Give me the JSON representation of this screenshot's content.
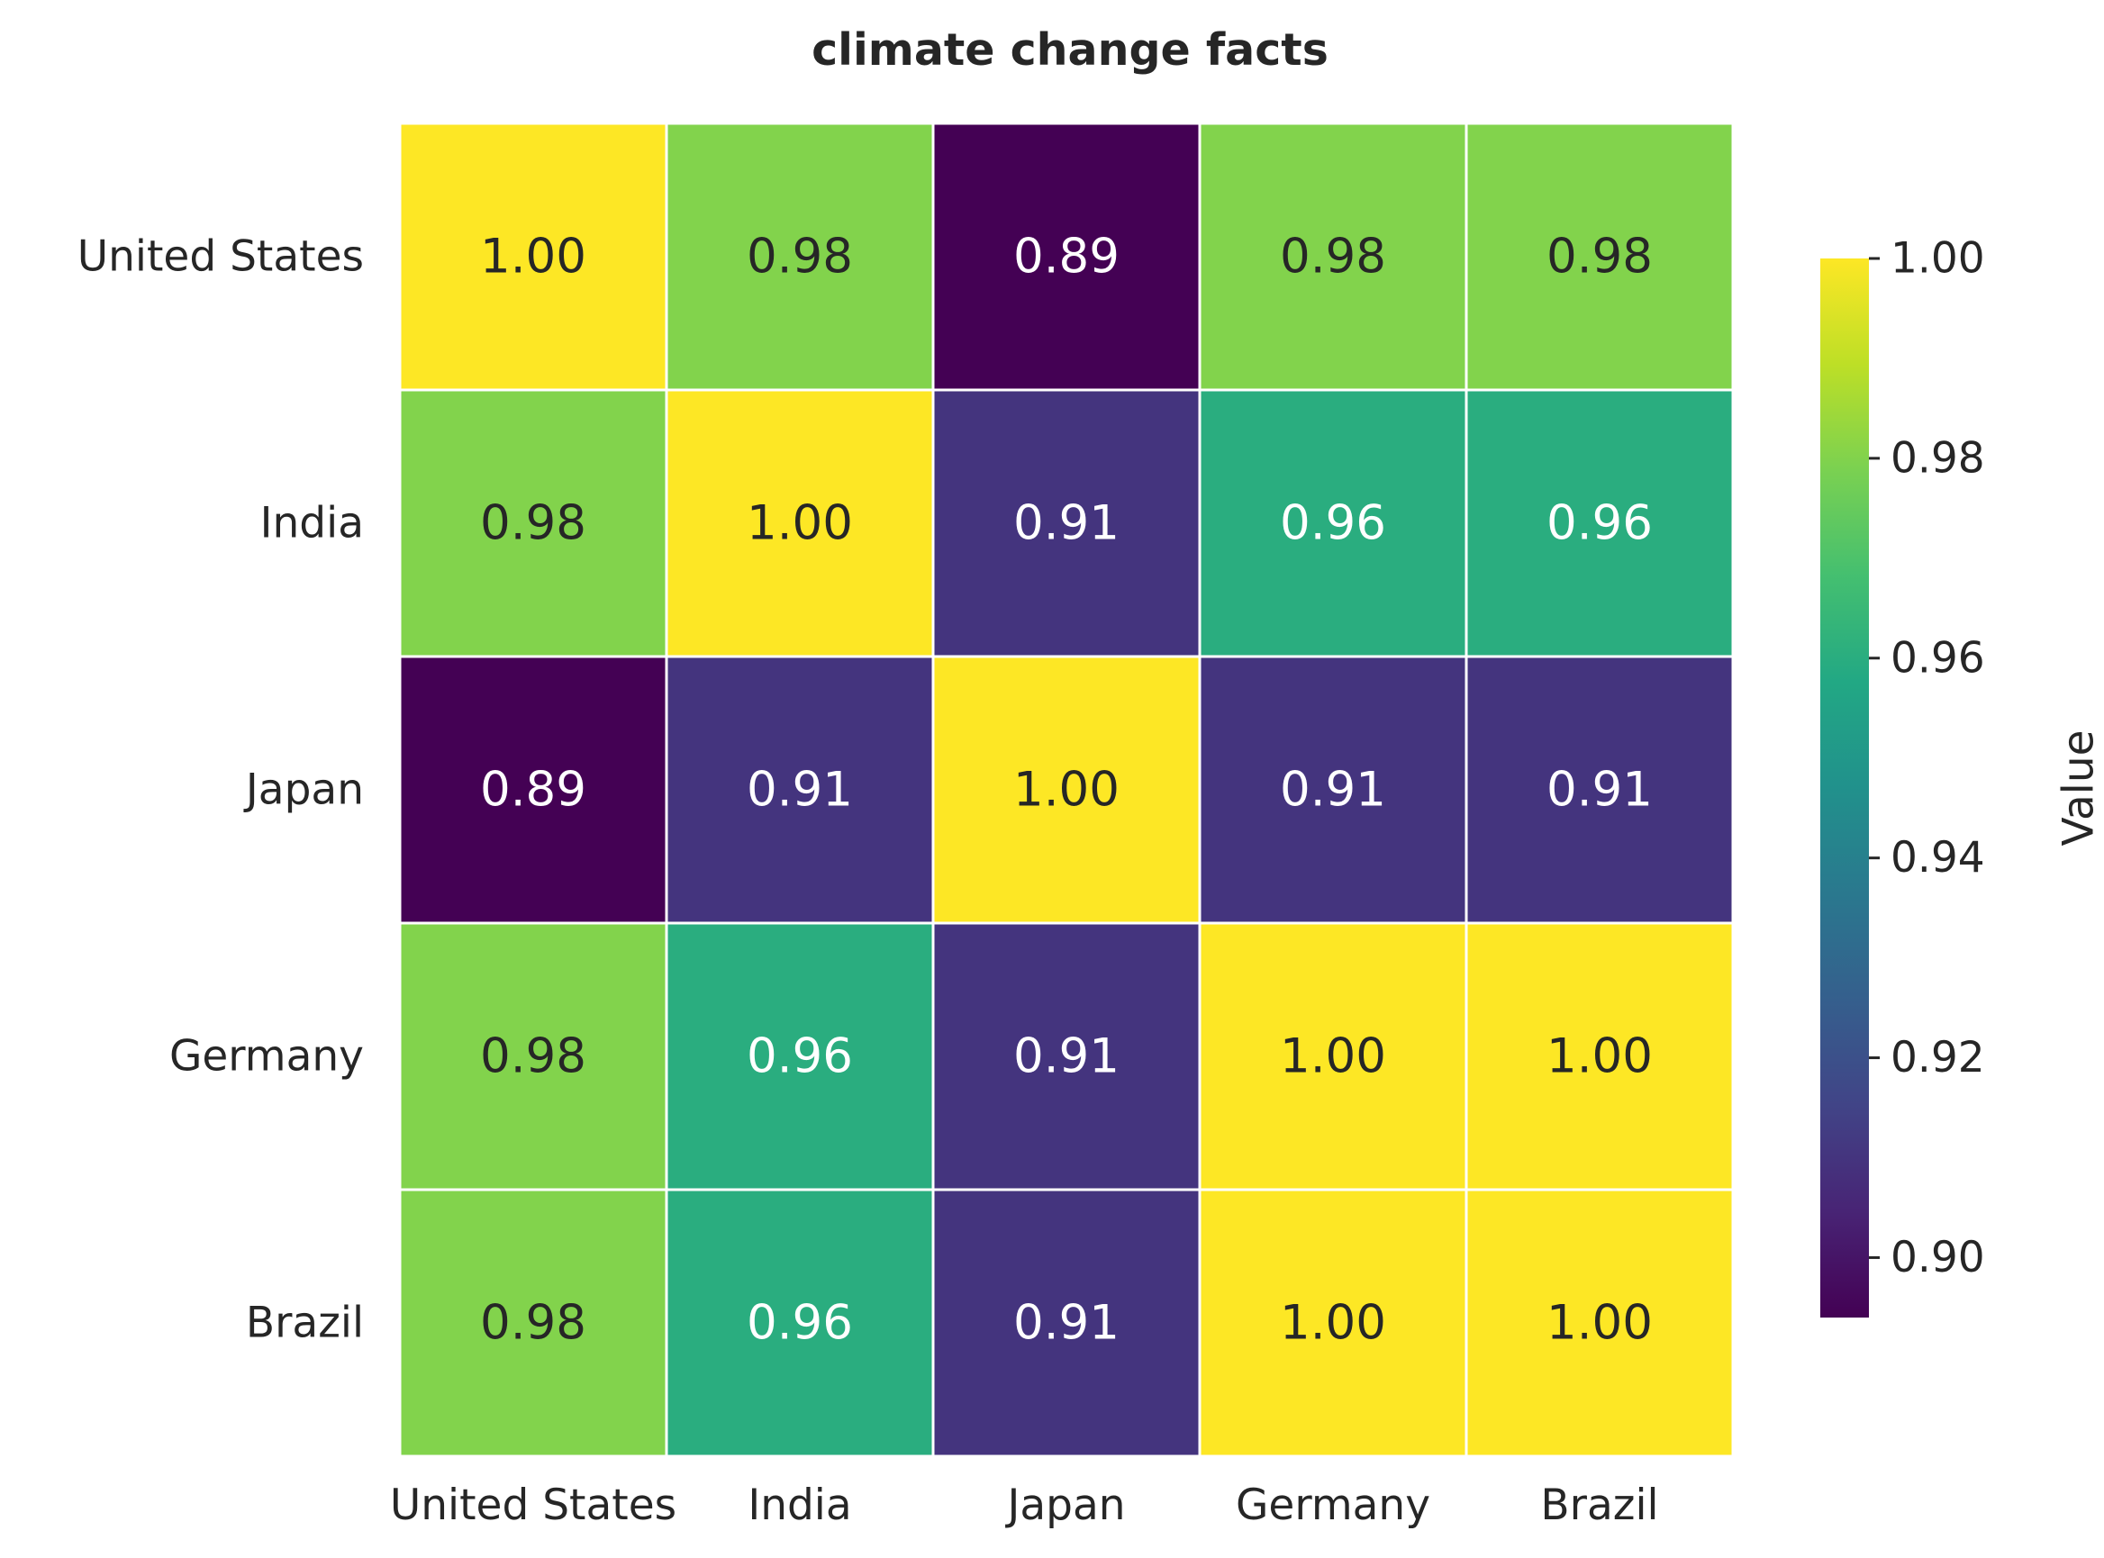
{
  "chart_data": {
    "type": "heatmap",
    "title": "climate change facts",
    "x_categories": [
      "United States",
      "India",
      "Japan",
      "Germany",
      "Brazil"
    ],
    "y_categories": [
      "United States",
      "India",
      "Japan",
      "Germany",
      "Brazil"
    ],
    "values": [
      [
        1.0,
        0.98,
        0.89,
        0.98,
        0.98
      ],
      [
        0.98,
        1.0,
        0.91,
        0.96,
        0.96
      ],
      [
        0.89,
        0.91,
        1.0,
        0.91,
        0.91
      ],
      [
        0.98,
        0.96,
        0.91,
        1.0,
        1.0
      ],
      [
        0.98,
        0.96,
        0.91,
        1.0,
        1.0
      ]
    ],
    "value_format": "0.00",
    "colormap": "viridis",
    "colorbar": {
      "label": "Value",
      "range": [
        0.894,
        1.0
      ],
      "ticks": [
        0.9,
        0.92,
        0.94,
        0.96,
        0.98,
        1.0
      ]
    },
    "grid": false
  }
}
